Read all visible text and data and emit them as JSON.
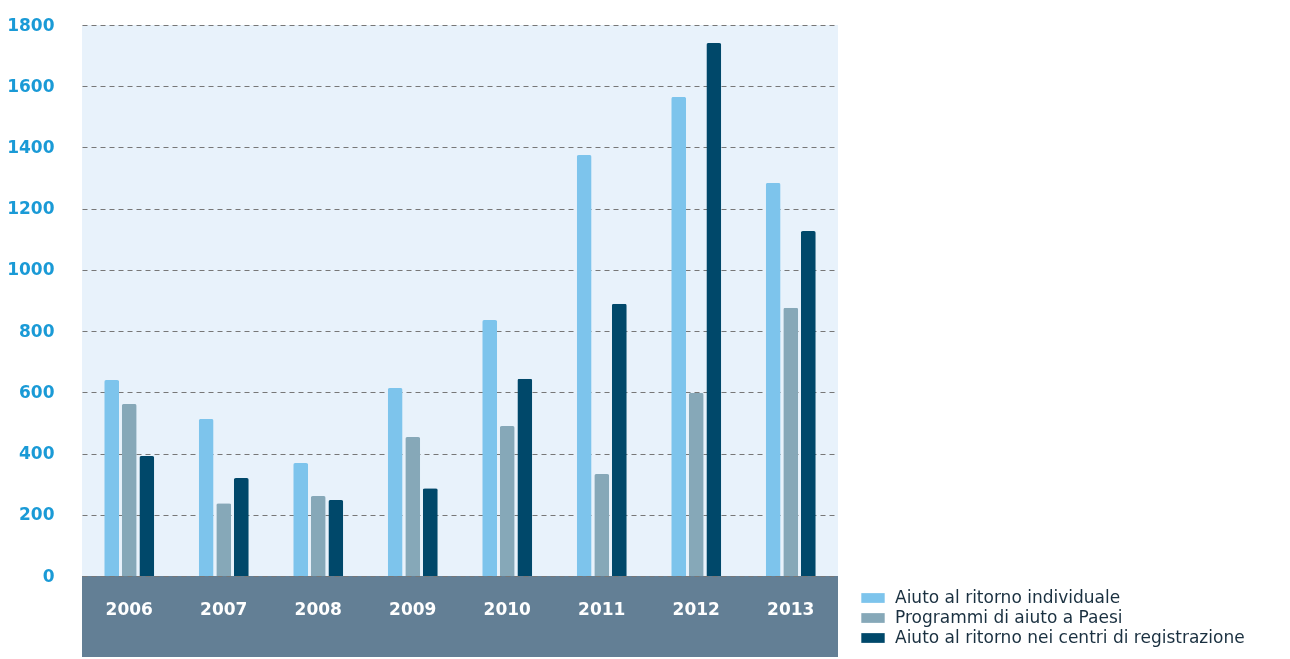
{
  "chart_data": {
    "type": "bar",
    "categories": [
      "2006",
      "2007",
      "2008",
      "2009",
      "2010",
      "2011",
      "2012",
      "2013"
    ],
    "series": [
      {
        "name": "Aiuto al ritorno individuale",
        "color": "#7dc4ec",
        "values": [
          640,
          513,
          369,
          614,
          836,
          1375,
          1565,
          1284
        ]
      },
      {
        "name": "Programmi di aiuto a Paesi",
        "color": "#86a8b8",
        "values": [
          562,
          238,
          261,
          454,
          490,
          333,
          598,
          876
        ]
      },
      {
        "name": "Aiuto al ritorno nei centri di registrazione",
        "color": "#00486a",
        "values": [
          392,
          320,
          248,
          287,
          644,
          889,
          1741,
          1127
        ]
      }
    ],
    "ylim": [
      0,
      1800
    ],
    "yticks": [
      0,
      200,
      400,
      600,
      800,
      1000,
      1200,
      1400,
      1600,
      1800
    ],
    "grid": "y",
    "legend": "bottom right"
  }
}
